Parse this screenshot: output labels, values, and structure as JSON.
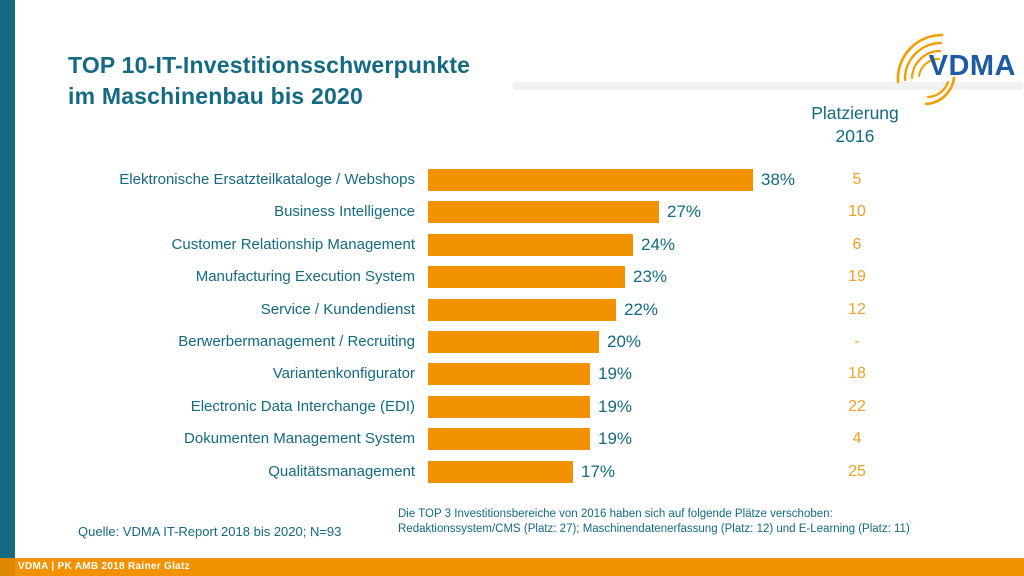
{
  "slide": {
    "title_line1": "TOP 10-IT-Investitionsschwerpunkte",
    "title_line2": "im Maschinenbau bis 2020",
    "source": "Quelle: VDMA IT-Report 2018 bis 2020; N=93",
    "note_line1": "Die TOP 3 Investitionsbereiche von 2016 haben sich auf folgende Plätze verschoben:",
    "note_line2": "Redaktionssystem/CMS (Platz: 27); Maschinendatenerfassung (Platz: 12) und E-Learning (Platz: 11)",
    "footer": "VDMA | PK AMB 2018 Rainer Glatz",
    "logo_text": "VDMA"
  },
  "placement_header": {
    "line1": "Platzierung",
    "line2": "2016"
  },
  "colors": {
    "teal": "#136A82",
    "bar_orange": "#F39200",
    "placement_orange": "#F0A028",
    "footer_orange": "#F39200",
    "footer_corner_orange": "#DE8700",
    "logo_blue": "#1F5BA4",
    "logo_arc_orange": "#F59C00"
  },
  "chart_data": {
    "type": "bar",
    "orientation": "horizontal",
    "title": "TOP 10-IT-Investitionsschwerpunkte im Maschinenbau bis 2020",
    "xlabel": "",
    "ylabel": "",
    "xlim": [
      0,
      40
    ],
    "grid": false,
    "legend": false,
    "categories": [
      "Elektronische Ersatzteilkataloge / Webshops",
      "Business Intelligence",
      "Customer Relationship Management",
      "Manufacturing Execution System",
      "Service / Kundendienst",
      "Berwerbermanagement / Recruiting",
      "Variantenkonfigurator",
      "Electronic Data Interchange (EDI)",
      "Dokumenten Management System",
      "Qualitätsmanagement"
    ],
    "values": [
      38,
      27,
      24,
      23,
      22,
      20,
      19,
      19,
      19,
      17
    ],
    "value_labels": [
      "38%",
      "27%",
      "24%",
      "23%",
      "22%",
      "20%",
      "19%",
      "19%",
      "19%",
      "17%"
    ],
    "placements_2016": [
      "5",
      "10",
      "6",
      "19",
      "12",
      "-",
      "18",
      "22",
      "4",
      "25"
    ],
    "bar_color": "#F39200",
    "label_color": "#136A82"
  }
}
